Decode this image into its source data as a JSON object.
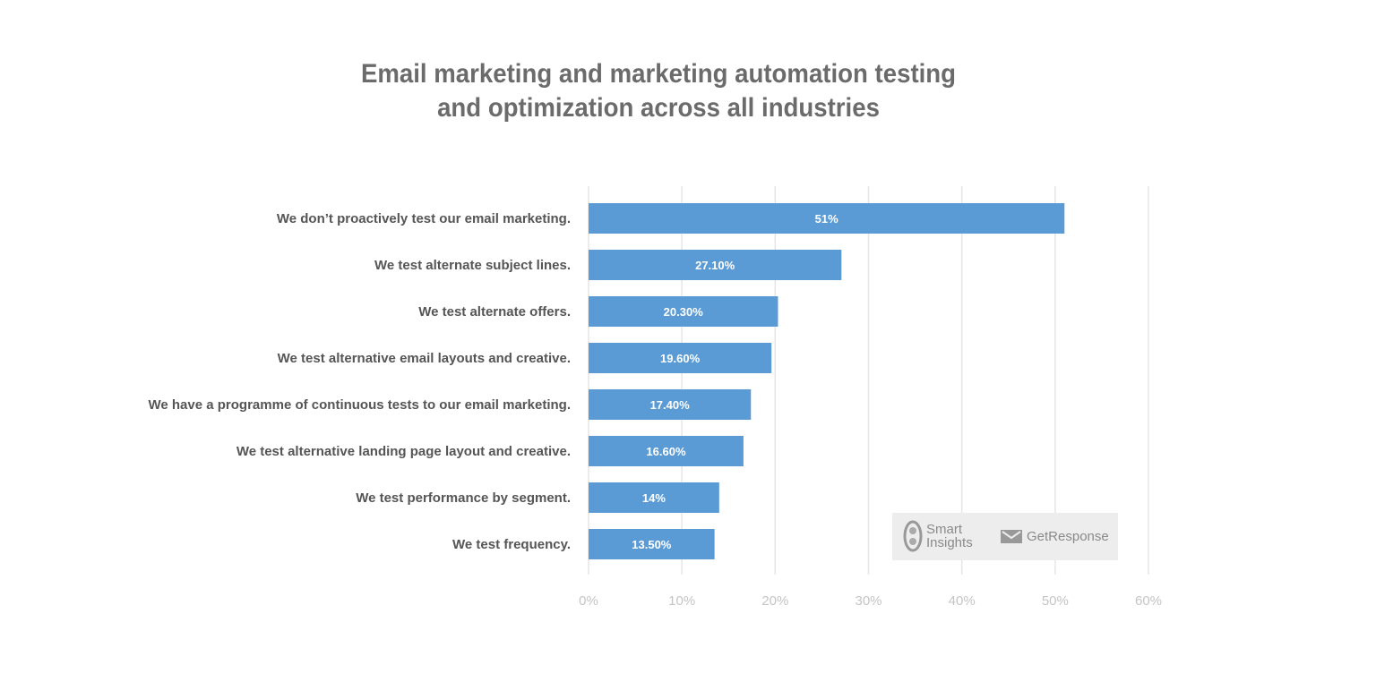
{
  "chart_data": {
    "type": "bar",
    "orientation": "horizontal",
    "title_lines": [
      "Email marketing and marketing automation testing",
      "and optimization across all industries"
    ],
    "categories": [
      "We don’t proactively test our email marketing.",
      "We test alternate subject lines.",
      "We test alternate offers.",
      "We test alternative email layouts and creative.",
      "We have a programme of continuous tests to our email marketing.",
      "We test alternative landing page layout and creative.",
      "We test performance by segment.",
      "We test frequency."
    ],
    "values": [
      51,
      27.1,
      20.3,
      19.6,
      17.4,
      16.6,
      14,
      13.5
    ],
    "data_labels": [
      "51%",
      "27.10%",
      "20.30%",
      "19.60%",
      "17.40%",
      "16.60%",
      "14%",
      "13.50%"
    ],
    "xlim": [
      0,
      60
    ],
    "x_ticks": [
      "0%",
      "10%",
      "20%",
      "30%",
      "40%",
      "50%",
      "60%"
    ],
    "grid": "vertical",
    "bar_color": "#5b9bd5",
    "xlabel": "",
    "ylabel": ""
  },
  "branding": {
    "logo1_line1": "Smart",
    "logo1_line2": "Insights",
    "logo2": "GetResponse"
  }
}
